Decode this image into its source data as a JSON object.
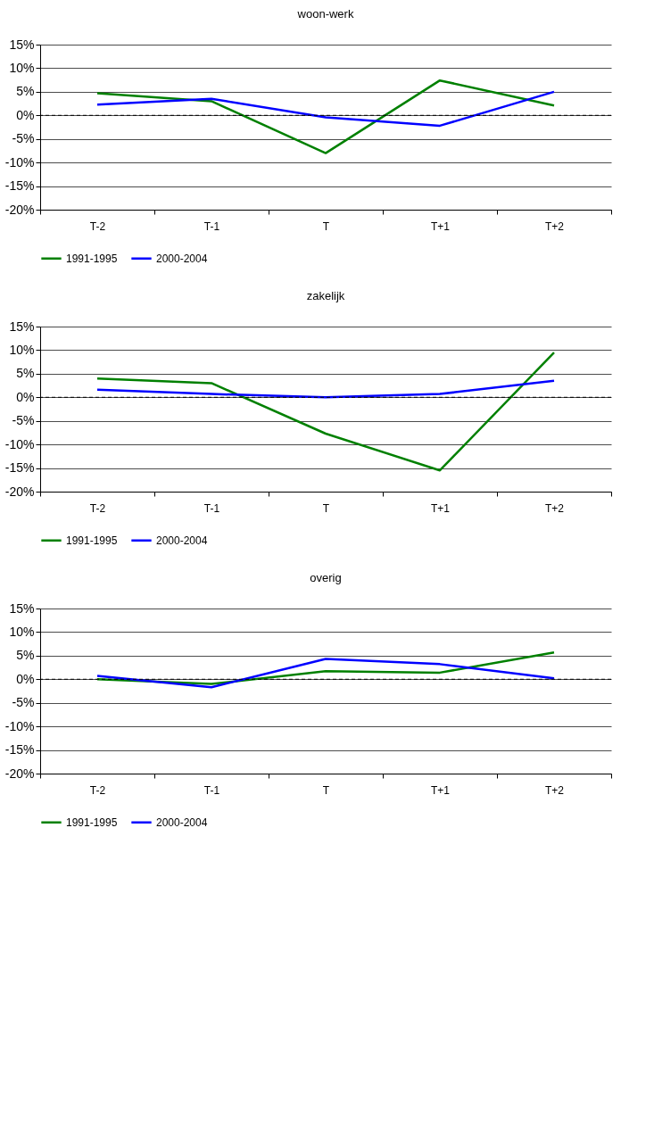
{
  "chart_data": [
    {
      "type": "line",
      "title": "woon-werk",
      "categories": [
        "T-2",
        "T-1",
        "T",
        "T+1",
        "T+2"
      ],
      "series": [
        {
          "name": "1991-1995",
          "color": "#008000",
          "values": [
            4.7,
            3.0,
            -8.0,
            7.4,
            2.1
          ]
        },
        {
          "name": "2000-2004",
          "color": "#0000ff",
          "values": [
            2.3,
            3.5,
            -0.4,
            -2.2,
            5.0
          ]
        }
      ],
      "ylim": [
        -20,
        15
      ],
      "yticks": [
        {
          "value": -20,
          "label": "-20%"
        },
        {
          "value": -15,
          "label": "-15%"
        },
        {
          "value": -10,
          "label": "-10%"
        },
        {
          "value": -5,
          "label": "-5%"
        },
        {
          "value": 0,
          "label": "0%"
        },
        {
          "value": 5,
          "label": "5%"
        },
        {
          "value": 10,
          "label": "10%"
        },
        {
          "value": 15,
          "label": "15%"
        }
      ],
      "ref_lines": [
        {
          "axis": "y",
          "value": 0,
          "line_style": "dashed",
          "color": "#000000"
        }
      ],
      "grid": "y",
      "legend": "bottom",
      "marker": "none",
      "line_style": "solid"
    },
    {
      "type": "line",
      "title": "zakelijk",
      "categories": [
        "T-2",
        "T-1",
        "T",
        "T+1",
        "T+2"
      ],
      "series": [
        {
          "name": "1991-1995",
          "color": "#008000",
          "values": [
            4.0,
            3.0,
            -7.7,
            -15.5,
            9.5
          ]
        },
        {
          "name": "2000-2004",
          "color": "#0000ff",
          "values": [
            1.6,
            0.7,
            0.0,
            0.7,
            3.5
          ]
        }
      ],
      "ylim": [
        -20,
        15
      ],
      "yticks": [
        {
          "value": -20,
          "label": "-20%"
        },
        {
          "value": -15,
          "label": "-15%"
        },
        {
          "value": -10,
          "label": "-10%"
        },
        {
          "value": -5,
          "label": "-5%"
        },
        {
          "value": 0,
          "label": "0%"
        },
        {
          "value": 5,
          "label": "5%"
        },
        {
          "value": 10,
          "label": "10%"
        },
        {
          "value": 15,
          "label": "15%"
        }
      ],
      "ref_lines": [
        {
          "axis": "y",
          "value": 0,
          "line_style": "dashed",
          "color": "#000000"
        }
      ],
      "grid": "y",
      "legend": "bottom",
      "marker": "none",
      "line_style": "solid"
    },
    {
      "type": "line",
      "title": "overig",
      "categories": [
        "T-2",
        "T-1",
        "T",
        "T+1",
        "T+2"
      ],
      "series": [
        {
          "name": "1991-1995",
          "color": "#008000",
          "values": [
            0.0,
            -1.0,
            1.7,
            1.4,
            5.7
          ]
        },
        {
          "name": "2000-2004",
          "color": "#0000ff",
          "values": [
            0.7,
            -1.7,
            4.3,
            3.2,
            0.2
          ]
        }
      ],
      "ylim": [
        -20,
        15
      ],
      "yticks": [
        {
          "value": -20,
          "label": "-20%"
        },
        {
          "value": -15,
          "label": "-15%"
        },
        {
          "value": -10,
          "label": "-10%"
        },
        {
          "value": -5,
          "label": "-5%"
        },
        {
          "value": 0,
          "label": "0%"
        },
        {
          "value": 5,
          "label": "5%"
        },
        {
          "value": 10,
          "label": "10%"
        },
        {
          "value": 15,
          "label": "15%"
        }
      ],
      "ref_lines": [
        {
          "axis": "y",
          "value": 0,
          "line_style": "dashed",
          "color": "#000000"
        }
      ],
      "grid": "y",
      "legend": "bottom",
      "marker": "none",
      "line_style": "solid"
    }
  ]
}
